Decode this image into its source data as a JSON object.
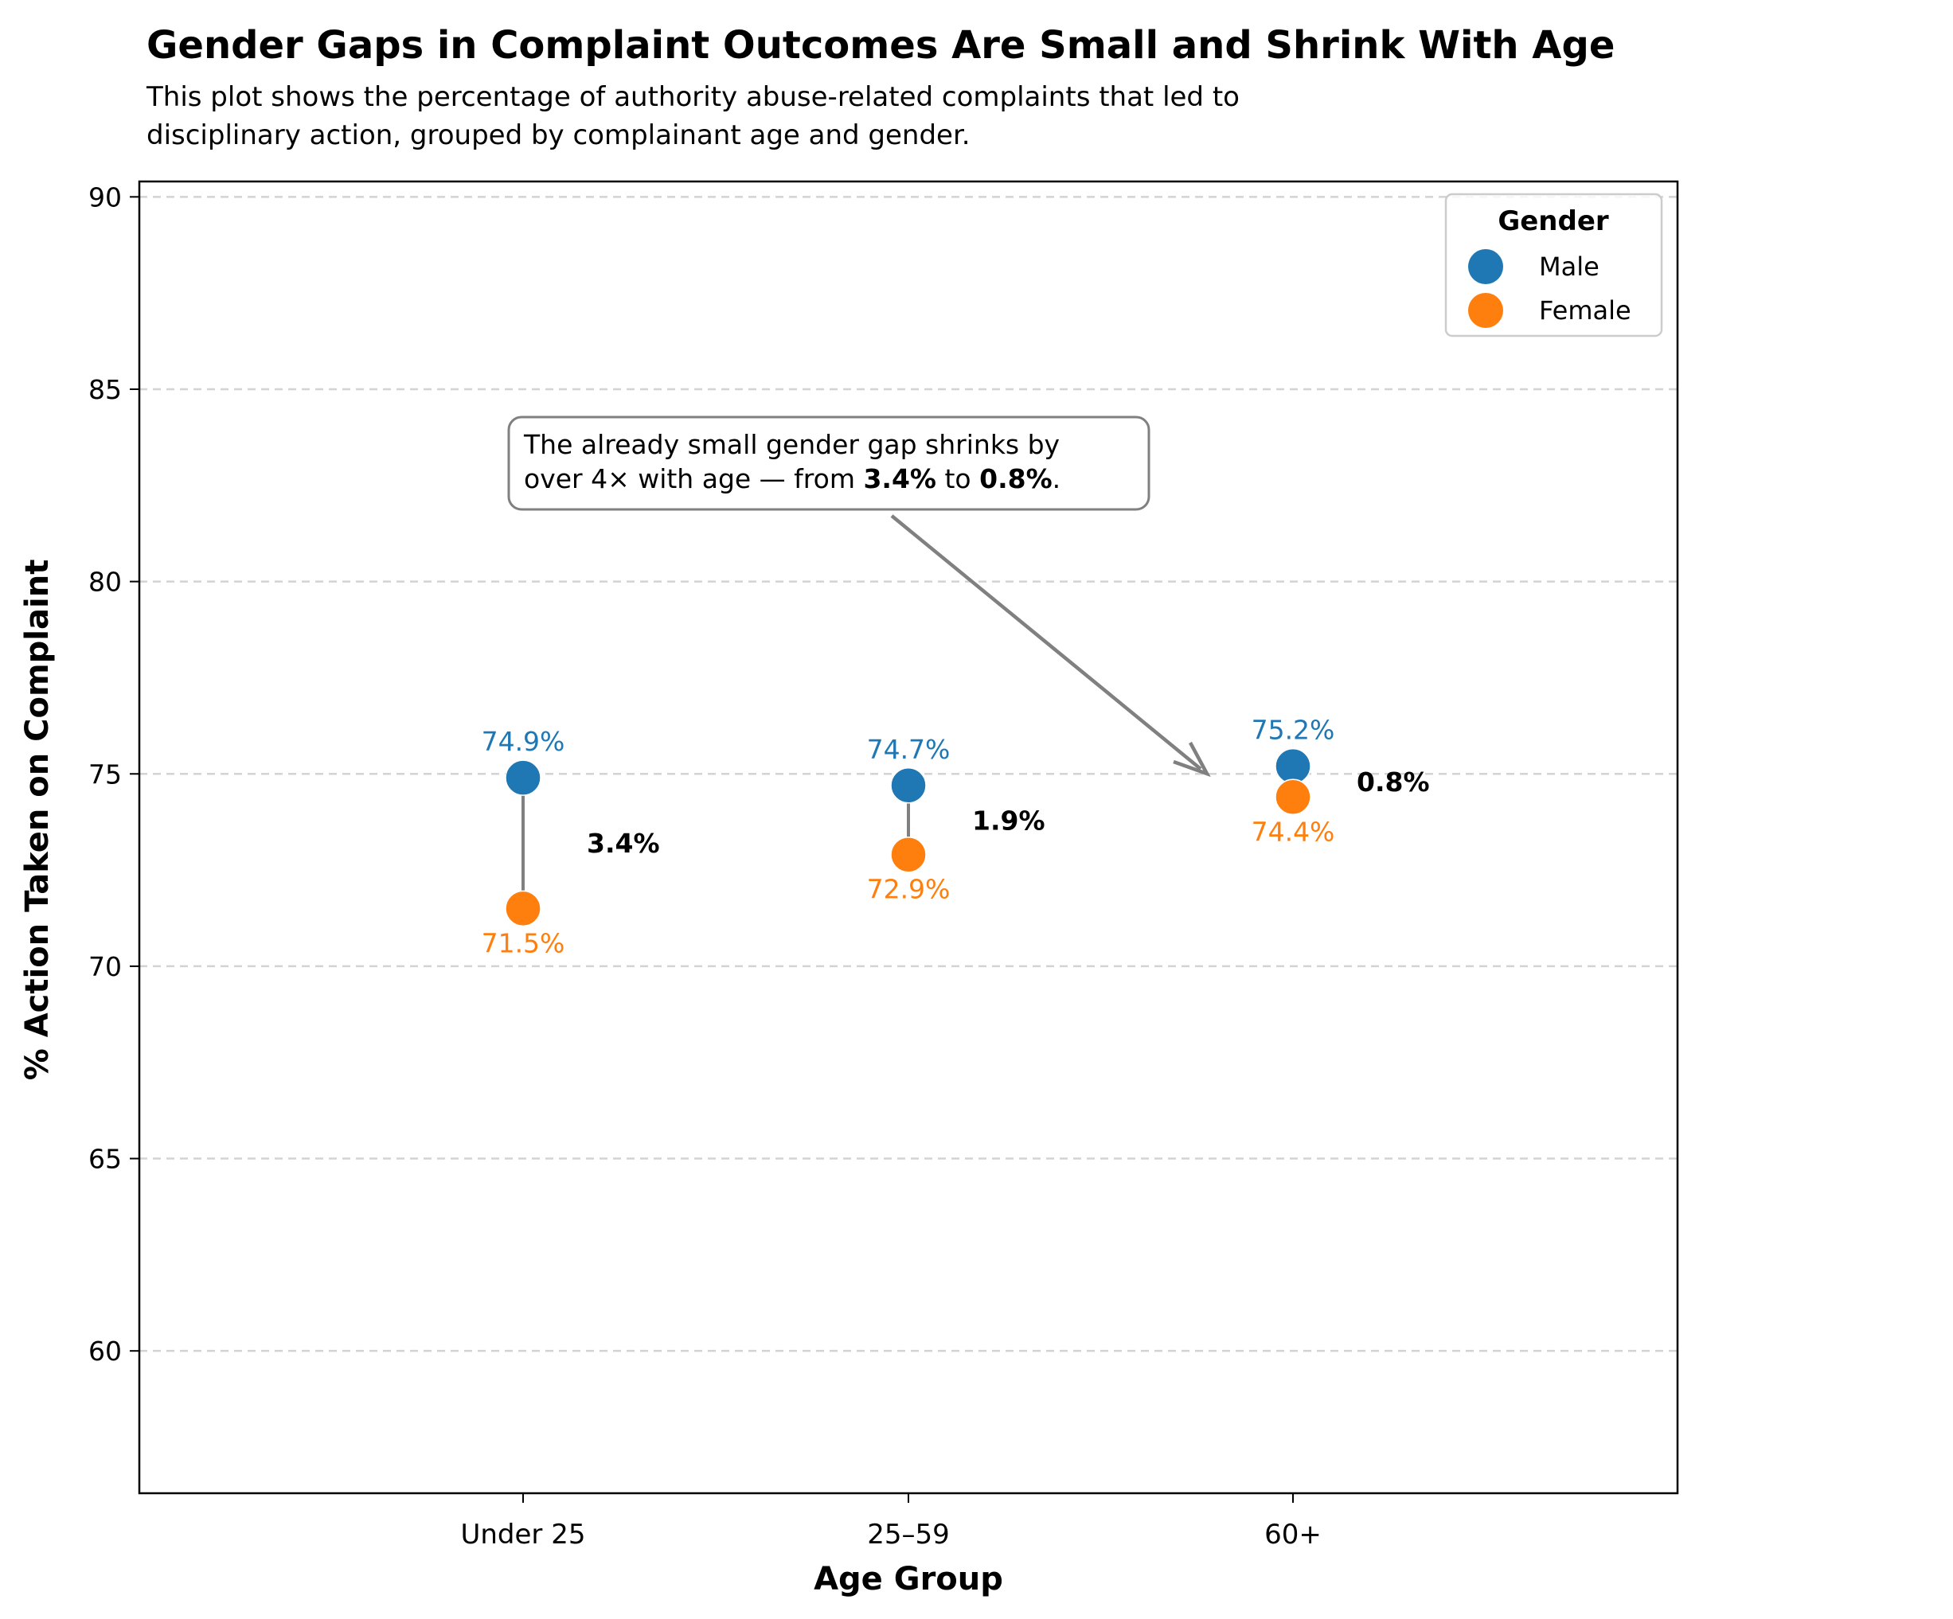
{
  "chart_data": {
    "type": "scatter",
    "title": "Gender Gaps in Complaint Outcomes Are Small and Shrink With Age",
    "subtitle_lines": [
      "This plot shows the percentage of authority abuse-related complaints that led to",
      "disciplinary action, grouped by complainant age and gender."
    ],
    "xlabel": "Age Group",
    "ylabel": "% Action Taken on Complaint",
    "categories": [
      "Under 25",
      "25–59",
      "60+"
    ],
    "ylim": [
      56.3,
      90.4
    ],
    "yticks": [
      60,
      65,
      70,
      75,
      80,
      85,
      90
    ],
    "ytick_labels": [
      "60",
      "65",
      "70",
      "75",
      "80",
      "85",
      "90"
    ],
    "grid": "y-dashed",
    "series": [
      {
        "name": "Male",
        "color": "#1f77b4",
        "values": [
          74.9,
          74.7,
          75.2
        ],
        "value_labels": [
          "74.9%",
          "74.7%",
          "75.2%"
        ]
      },
      {
        "name": "Female",
        "color": "#ff7f0e",
        "values": [
          71.5,
          72.9,
          74.4
        ],
        "value_labels": [
          "71.5%",
          "72.9%",
          "74.4%"
        ]
      }
    ],
    "gap_labels": [
      "3.4%",
      "1.9%",
      "0.8%"
    ],
    "legend": {
      "title": "Gender",
      "placement": "top-right"
    },
    "annotation": {
      "line1": "The already small gender gap shrinks by",
      "line2_parts": [
        {
          "text": "over 4× with age — from ",
          "bold": false
        },
        {
          "text": "3.4%",
          "bold": true
        },
        {
          "text": " to ",
          "bold": false
        },
        {
          "text": "0.8%",
          "bold": true
        },
        {
          "text": ".",
          "bold": false
        }
      ],
      "points_to_category": "60+",
      "points_to_value": 74.9
    }
  }
}
